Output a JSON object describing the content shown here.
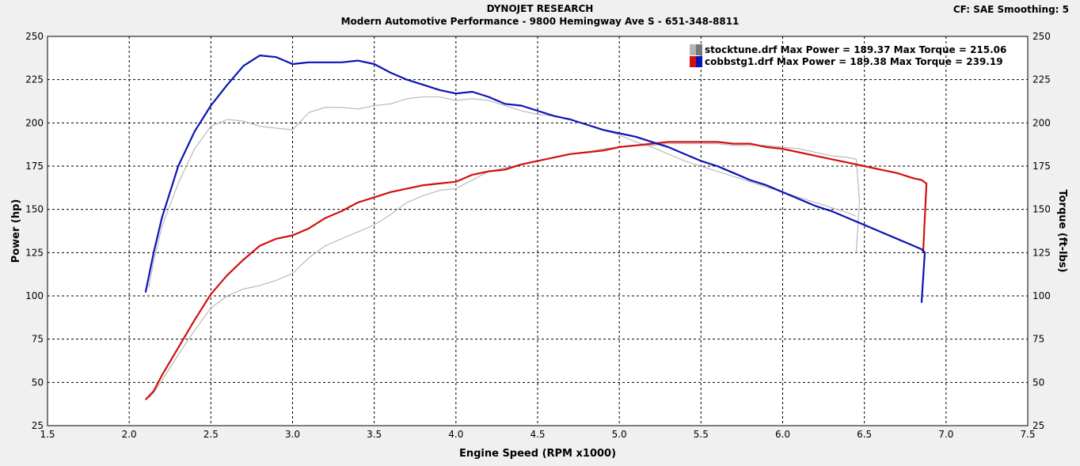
{
  "header": {
    "title": "DYNOJET RESEARCH",
    "subtitle": "Modern Automotive Performance - 9800 Hemingway Ave S - 651-348-8811",
    "settings": "CF: SAE  Smoothing: 5"
  },
  "colors": {
    "run1_power": "#b4b4b4",
    "run1_torque": "#b4b4b4",
    "run2_power": "#d01010",
    "run2_torque": "#0a14b4",
    "plot_bg": "#ffffff",
    "page_bg": "#f0f0f0"
  },
  "chart_data": {
    "type": "line",
    "xlabel": "Engine Speed (RPM x1000)",
    "ylabel_left": "Power (hp)",
    "ylabel_right": "Torque (ft-lbs)",
    "xlim": [
      1.5,
      7.5
    ],
    "ylim": [
      25,
      250
    ],
    "x_ticks": [
      "1.5",
      "2.0",
      "2.5",
      "3.0",
      "3.5",
      "4.0",
      "4.5",
      "5.0",
      "5.5",
      "6.0",
      "6.5",
      "7.0",
      "7.5"
    ],
    "y_ticks": [
      "25",
      "50",
      "75",
      "100",
      "125",
      "150",
      "175",
      "200",
      "225",
      "250"
    ],
    "grid": true,
    "legend": [
      {
        "label": "stocktune.drf Max Power = 189.37 Max Torque = 215.06"
      },
      {
        "label": "cobbstg1.drf Max Power = 189.38 Max Torque = 239.19"
      }
    ],
    "series": [
      {
        "run": "stocktune.drf",
        "measure": "power",
        "x": [
          2.12,
          2.15,
          2.2,
          2.3,
          2.4,
          2.5,
          2.6,
          2.7,
          2.8,
          2.9,
          3.0,
          3.1,
          3.2,
          3.3,
          3.4,
          3.5,
          3.6,
          3.7,
          3.8,
          3.9,
          4.0,
          4.1,
          4.2,
          4.3,
          4.4,
          4.5,
          4.6,
          4.7,
          4.8,
          4.9,
          5.0,
          5.1,
          5.2,
          5.3,
          5.4,
          5.5,
          5.6,
          5.7,
          5.8,
          5.9,
          6.0,
          6.1,
          6.2,
          6.3,
          6.4,
          6.45,
          6.47,
          6.45
        ],
        "y": [
          41,
          44,
          51,
          66,
          80,
          93,
          100,
          104,
          106,
          109,
          113,
          122,
          129,
          133,
          137,
          141,
          147,
          154,
          158,
          161,
          162,
          167,
          172,
          174,
          176,
          178,
          180,
          182,
          183,
          185,
          186,
          187,
          187,
          188,
          188,
          188,
          188,
          187,
          187,
          187,
          186,
          185,
          183,
          181,
          180,
          179,
          155,
          125
        ]
      },
      {
        "run": "stocktune.drf",
        "measure": "torque",
        "x": [
          2.12,
          2.15,
          2.2,
          2.3,
          2.4,
          2.5,
          2.6,
          2.7,
          2.8,
          2.9,
          3.0,
          3.1,
          3.2,
          3.3,
          3.4,
          3.5,
          3.6,
          3.7,
          3.8,
          3.9,
          4.0,
          4.1,
          4.2,
          4.3,
          4.4,
          4.5,
          4.6,
          4.7,
          4.8,
          4.9,
          5.0,
          5.1,
          5.2,
          5.3,
          5.4,
          5.5,
          5.6,
          5.7,
          5.8,
          5.9,
          6.0,
          6.1,
          6.2,
          6.3,
          6.4,
          6.45
        ],
        "y": [
          105,
          120,
          140,
          165,
          185,
          198,
          202,
          201,
          198,
          197,
          196,
          206,
          209,
          209,
          208,
          210,
          211,
          214,
          215,
          215,
          213,
          214,
          213,
          210,
          207,
          205,
          204,
          202,
          199,
          196,
          193,
          189,
          186,
          182,
          178,
          175,
          172,
          169,
          166,
          163,
          160,
          157,
          154,
          151,
          148,
          146
        ]
      },
      {
        "run": "cobbstg1.drf",
        "measure": "power",
        "x": [
          2.1,
          2.15,
          2.2,
          2.3,
          2.4,
          2.5,
          2.6,
          2.7,
          2.8,
          2.9,
          3.0,
          3.1,
          3.2,
          3.3,
          3.4,
          3.5,
          3.6,
          3.7,
          3.8,
          3.9,
          4.0,
          4.1,
          4.2,
          4.3,
          4.4,
          4.5,
          4.6,
          4.7,
          4.8,
          4.9,
          5.0,
          5.1,
          5.2,
          5.3,
          5.4,
          5.5,
          5.6,
          5.7,
          5.8,
          5.9,
          6.0,
          6.1,
          6.2,
          6.3,
          6.4,
          6.5,
          6.6,
          6.7,
          6.8,
          6.85,
          6.88,
          6.86
        ],
        "y": [
          40,
          45,
          54,
          70,
          86,
          101,
          112,
          121,
          129,
          133,
          135,
          139,
          145,
          149,
          154,
          157,
          160,
          162,
          164,
          165,
          166,
          170,
          172,
          173,
          176,
          178,
          180,
          182,
          183,
          184,
          186,
          187,
          188,
          189,
          189,
          189,
          189,
          188,
          188,
          186,
          185,
          183,
          181,
          179,
          177,
          175,
          173,
          171,
          168,
          167,
          165,
          125
        ]
      },
      {
        "run": "cobbstg1.drf",
        "measure": "torque",
        "x": [
          2.1,
          2.15,
          2.2,
          2.3,
          2.4,
          2.5,
          2.6,
          2.7,
          2.8,
          2.9,
          3.0,
          3.1,
          3.2,
          3.3,
          3.4,
          3.5,
          3.6,
          3.7,
          3.8,
          3.9,
          4.0,
          4.1,
          4.2,
          4.3,
          4.4,
          4.5,
          4.6,
          4.7,
          4.8,
          4.9,
          5.0,
          5.1,
          5.2,
          5.3,
          5.4,
          5.5,
          5.6,
          5.7,
          5.8,
          5.9,
          6.0,
          6.1,
          6.2,
          6.3,
          6.4,
          6.5,
          6.6,
          6.7,
          6.8,
          6.85,
          6.87,
          6.85
        ],
        "y": [
          102,
          125,
          145,
          175,
          195,
          210,
          222,
          233,
          239,
          238,
          234,
          235,
          235,
          235,
          236,
          234,
          229,
          225,
          222,
          219,
          217,
          218,
          215,
          211,
          210,
          207,
          204,
          202,
          199,
          196,
          194,
          192,
          189,
          186,
          182,
          178,
          175,
          171,
          167,
          164,
          160,
          156,
          152,
          149,
          145,
          141,
          137,
          133,
          129,
          127,
          125,
          96
        ]
      }
    ]
  }
}
